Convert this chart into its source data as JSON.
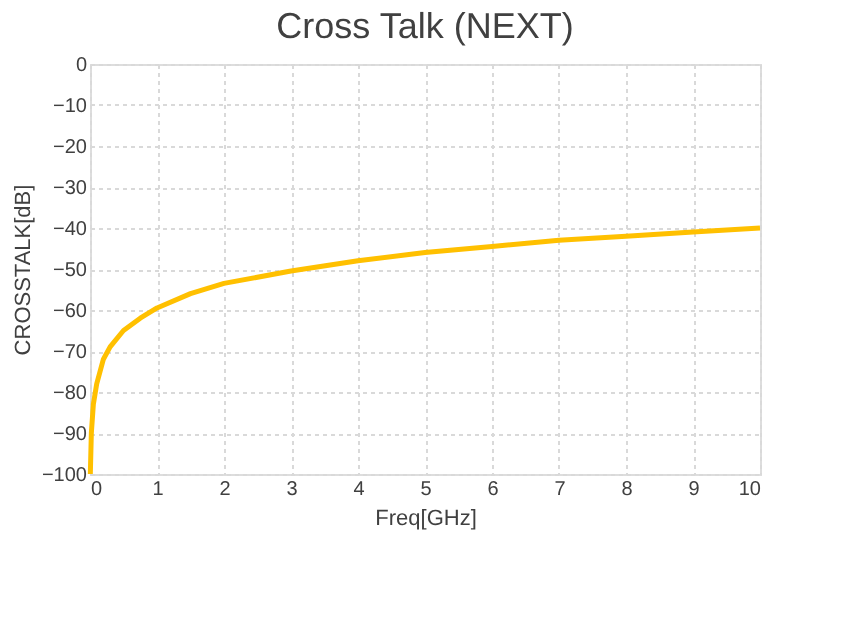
{
  "chart_data": {
    "type": "line",
    "title": "Cross Talk (NEXT)",
    "xlabel": "Freq[GHz]",
    "ylabel": "CROSSTALK[dB]",
    "x": [
      0.005,
      0.02,
      0.05,
      0.1,
      0.2,
      0.3,
      0.5,
      0.75,
      1,
      1.5,
      2,
      3,
      4,
      5,
      6,
      7,
      8,
      9,
      10
    ],
    "series": [
      {
        "color": "#ffc000",
        "values": [
          -100,
          -90,
          -83,
          -78,
          -72,
          -69,
          -65,
          -62,
          -59.5,
          -56,
          -53.5,
          -50.5,
          -48,
          -46,
          -44.5,
          -43,
          -42,
          -41,
          -40
        ]
      }
    ],
    "xlim": [
      0,
      10
    ],
    "xticks": [
      0,
      1,
      2,
      3,
      4,
      5,
      6,
      7,
      8,
      9,
      10
    ],
    "ylim": [
      -100,
      0
    ],
    "yticks": [
      -100,
      -90,
      -80,
      -70,
      -60,
      -50,
      -40,
      -30,
      -20,
      -10,
      0
    ],
    "grid": true,
    "line_style": "solid",
    "marker": "none"
  }
}
